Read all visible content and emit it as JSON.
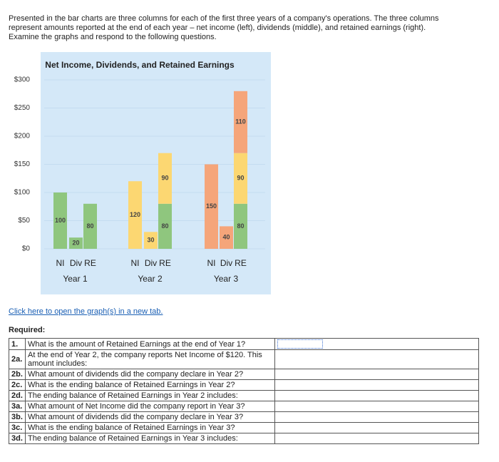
{
  "intro": "Presented in the bar charts are three columns for each of the first three years of a company's operations. The three columns represent amounts reported at the end of each year – net income (left), dividends (middle), and retained earnings (right). Examine the graphs and respond to the following questions.",
  "chart_data": {
    "type": "bar",
    "stacked": true,
    "title": "Net Income, Dividends, and Retained Earnings",
    "categories": [
      "NI",
      "Div",
      "RE",
      "NI",
      "Div",
      "RE",
      "NI",
      "Div",
      "RE"
    ],
    "groups": [
      "Year 1",
      "Year 2",
      "Year 3"
    ],
    "series": [
      {
        "color": "#8fc67e",
        "values": [
          100,
          20,
          80,
          null,
          null,
          80,
          null,
          null,
          80
        ]
      },
      {
        "color": "#fcd772",
        "values": [
          null,
          null,
          null,
          120,
          30,
          90,
          null,
          null,
          90
        ]
      },
      {
        "color": "#f5a57a",
        "values": [
          null,
          null,
          null,
          null,
          null,
          null,
          150,
          40,
          110
        ]
      }
    ],
    "ylim": [
      0,
      300
    ],
    "yticks": [
      {
        "value": 0,
        "label": "$0"
      },
      {
        "value": 50,
        "label": "$50"
      },
      {
        "value": 100,
        "label": "$100"
      },
      {
        "value": 150,
        "label": "$150"
      },
      {
        "value": 200,
        "label": "$200"
      },
      {
        "value": 250,
        "label": "$250"
      },
      {
        "value": 300,
        "label": "$300"
      }
    ]
  },
  "link": "Click here to open the graph(s) in a new tab.",
  "required": "Required:",
  "table": {
    "rows": [
      {
        "num": "1.",
        "question": "What is the amount of Retained Earnings at the end of Year 1?"
      },
      {
        "num": "2a.",
        "question": "At the end of Year 2, the company reports Net Income of $120. This amount includes:"
      },
      {
        "num": "2b.",
        "question": "What amount of dividends did the company declare in Year 2?"
      },
      {
        "num": "2c.",
        "question": "What is the ending balance of Retained Earnings in Year 2?"
      },
      {
        "num": "2d.",
        "question": "The ending balance of Retained Earnings in Year 2 includes:"
      },
      {
        "num": "3a.",
        "question": "What amount of Net Income did the company report in Year 3?"
      },
      {
        "num": "3b.",
        "question": "What amount of dividends did the company declare in Year 3?"
      },
      {
        "num": "3c.",
        "question": "What is the ending balance of Retained Earnings in Year 3?"
      },
      {
        "num": "3d.",
        "question": "The ending balance of Retained Earnings in Year 3 includes:"
      }
    ]
  }
}
